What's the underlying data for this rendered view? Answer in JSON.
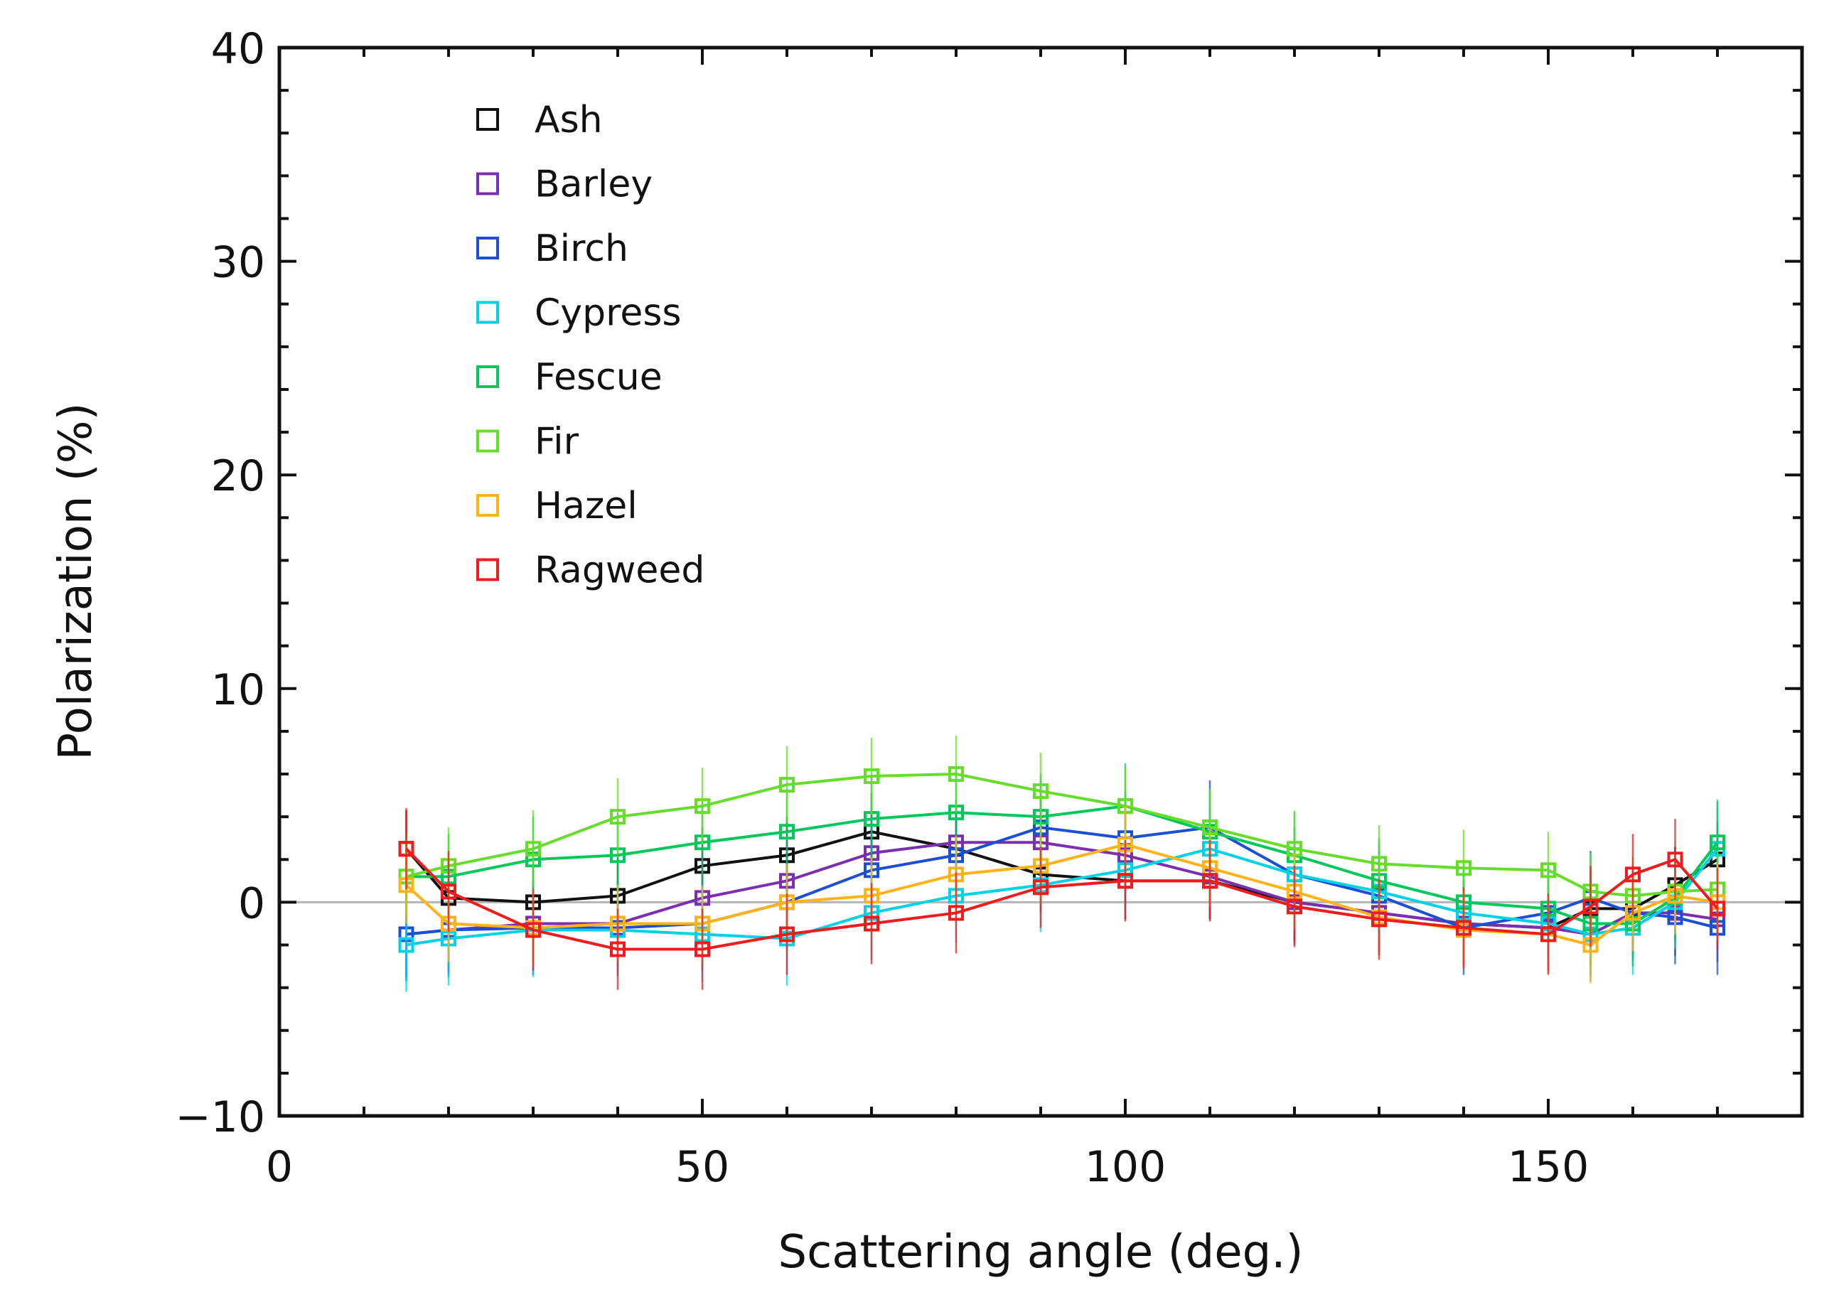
{
  "chart_data": {
    "type": "line",
    "title": "",
    "xlabel": "Scattering angle (deg.)",
    "ylabel": "Polarization (%)",
    "xlim": [
      0,
      180
    ],
    "ylim": [
      -10,
      40
    ],
    "x_ticks": [
      0,
      50,
      100,
      150
    ],
    "y_ticks": [
      -10,
      0,
      10,
      20,
      30,
      40
    ],
    "x_tick_labels": [
      "0",
      "50",
      "100",
      "150"
    ],
    "y_tick_labels": [
      "−10",
      "0",
      "10",
      "20",
      "30",
      "40"
    ],
    "reference_line_y": 0,
    "legend_position": "top-left",
    "x": [
      15,
      20,
      30,
      40,
      50,
      60,
      70,
      80,
      90,
      100,
      110,
      120,
      130,
      140,
      150,
      155,
      160,
      165,
      170
    ],
    "series": [
      {
        "name": "Ash",
        "color": "#111111",
        "values": [
          2.5,
          0.2,
          0.0,
          0.3,
          1.7,
          2.2,
          3.3,
          2.5,
          1.3,
          1.0,
          1.0,
          0.0,
          -0.5,
          -1.0,
          -1.2,
          -0.3,
          -0.3,
          0.8,
          2.0
        ],
        "errors": [
          1.8,
          1.8,
          1.8,
          1.8,
          1.8,
          1.8,
          1.8,
          1.8,
          1.8,
          1.8,
          1.8,
          1.8,
          1.8,
          1.8,
          1.8,
          1.8,
          1.8,
          1.8,
          1.8
        ]
      },
      {
        "name": "Barley",
        "color": "#7b2fb0",
        "values": [
          -1.5,
          -1.3,
          -1.0,
          -1.0,
          0.2,
          1.0,
          2.3,
          2.8,
          2.8,
          2.2,
          1.2,
          0.0,
          -0.5,
          -1.0,
          -1.2,
          -1.5,
          -0.5,
          -0.5,
          -0.8
        ],
        "errors": [
          2.0,
          2.0,
          2.0,
          2.0,
          2.0,
          2.0,
          2.0,
          2.0,
          2.0,
          2.0,
          2.0,
          2.0,
          2.0,
          2.0,
          2.0,
          2.0,
          2.0,
          2.0,
          2.0
        ]
      },
      {
        "name": "Birch",
        "color": "#1a4fd6",
        "values": [
          -1.5,
          -1.3,
          -1.2,
          -1.2,
          -1.0,
          0.0,
          1.5,
          2.2,
          3.5,
          3.0,
          3.5,
          1.3,
          0.3,
          -1.2,
          -0.5,
          0.2,
          -0.5,
          -0.7,
          -1.2
        ],
        "errors": [
          2.2,
          2.2,
          2.2,
          2.2,
          2.2,
          2.2,
          2.2,
          2.2,
          2.2,
          2.2,
          2.2,
          2.2,
          2.2,
          2.2,
          2.2,
          2.2,
          2.2,
          2.2,
          2.2
        ]
      },
      {
        "name": "Cypress",
        "color": "#00d2e6",
        "values": [
          -2.0,
          -1.7,
          -1.3,
          -1.3,
          -1.5,
          -1.7,
          -0.5,
          0.3,
          0.8,
          1.5,
          2.5,
          1.3,
          0.5,
          -0.5,
          -1.0,
          -1.5,
          -1.2,
          0.0,
          2.5
        ],
        "errors": [
          2.2,
          2.2,
          2.2,
          2.2,
          2.2,
          2.2,
          2.2,
          2.2,
          2.2,
          2.2,
          2.2,
          2.2,
          2.2,
          2.2,
          2.2,
          2.2,
          2.2,
          2.2,
          2.2
        ]
      },
      {
        "name": "Fescue",
        "color": "#00c85a",
        "values": [
          1.2,
          1.2,
          2.0,
          2.2,
          2.8,
          3.3,
          3.9,
          4.2,
          4.0,
          4.5,
          3.3,
          2.2,
          1.0,
          0.0,
          -0.3,
          -1.0,
          -1.0,
          0.2,
          2.8
        ],
        "errors": [
          2.0,
          2.0,
          2.0,
          2.0,
          2.0,
          2.0,
          2.0,
          2.0,
          2.0,
          2.0,
          2.0,
          2.0,
          2.0,
          2.0,
          2.0,
          2.0,
          2.0,
          2.0,
          2.0
        ]
      },
      {
        "name": "Fir",
        "color": "#66dd2a",
        "values": [
          1.2,
          1.7,
          2.5,
          4.0,
          4.5,
          5.5,
          5.9,
          6.0,
          5.2,
          4.5,
          3.5,
          2.5,
          1.8,
          1.6,
          1.5,
          0.5,
          0.3,
          0.5,
          0.6
        ],
        "errors": [
          1.8,
          1.8,
          1.8,
          1.8,
          1.8,
          1.8,
          1.8,
          1.8,
          1.8,
          1.8,
          1.8,
          1.8,
          1.8,
          1.8,
          1.8,
          1.8,
          1.8,
          1.8,
          1.8
        ]
      },
      {
        "name": "Hazel",
        "color": "#ffb31a",
        "values": [
          0.8,
          -1.0,
          -1.2,
          -1.0,
          -1.0,
          0.0,
          0.3,
          1.3,
          1.7,
          2.7,
          1.6,
          0.5,
          -0.7,
          -1.3,
          -1.5,
          -2.0,
          -0.5,
          0.3,
          0.0
        ],
        "errors": [
          1.8,
          1.8,
          1.8,
          1.8,
          1.8,
          1.8,
          1.8,
          1.8,
          1.8,
          1.8,
          1.8,
          1.8,
          1.8,
          1.8,
          1.8,
          1.8,
          1.8,
          1.8,
          1.8
        ]
      },
      {
        "name": "Ragweed",
        "color": "#ee1c1c",
        "values": [
          2.5,
          0.5,
          -1.3,
          -2.2,
          -2.2,
          -1.5,
          -1.0,
          -0.5,
          0.7,
          1.0,
          1.0,
          -0.2,
          -0.8,
          -1.2,
          -1.5,
          -0.2,
          1.3,
          2.0,
          -0.3
        ],
        "errors": [
          1.9,
          1.9,
          1.9,
          1.9,
          1.9,
          1.9,
          1.9,
          1.9,
          1.9,
          1.9,
          1.9,
          1.9,
          1.9,
          1.9,
          1.9,
          1.9,
          1.9,
          1.9,
          1.9
        ]
      }
    ]
  }
}
